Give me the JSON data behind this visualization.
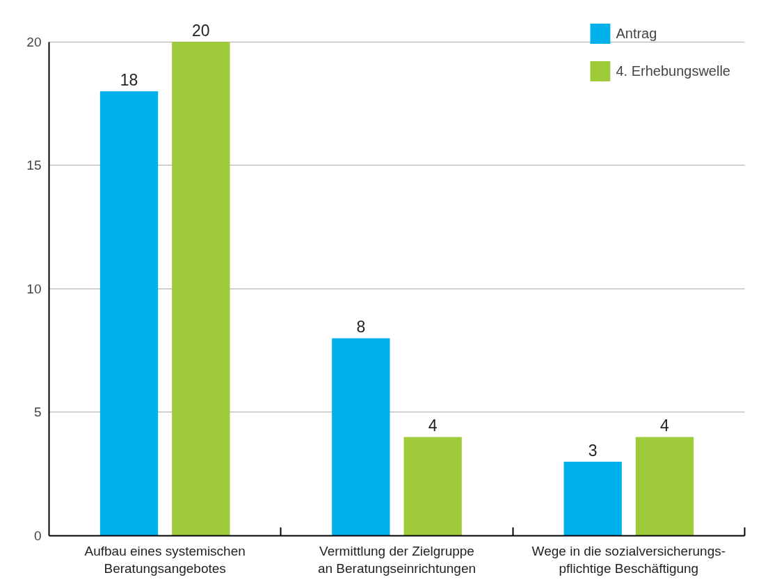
{
  "chart_data": {
    "type": "bar",
    "categories": [
      "Aufbau eines systemischen\nBeratungsangebotes",
      "Vermittlung der Zielgruppe\nan Beratungseinrichtungen",
      "Wege in die sozialversicherungs-\npflichtige Beschäftigung"
    ],
    "series": [
      {
        "name": "Antrag",
        "color": "#00b0eb",
        "values": [
          18,
          8,
          3
        ]
      },
      {
        "name": "4. Erhebungswelle",
        "color": "#9fcb3b",
        "values": [
          20,
          4,
          4
        ]
      }
    ],
    "ylim": [
      0,
      20
    ],
    "yticks": [
      0,
      5,
      10,
      15,
      20
    ],
    "grid": "y",
    "legend": "top right",
    "data_labels": true
  }
}
